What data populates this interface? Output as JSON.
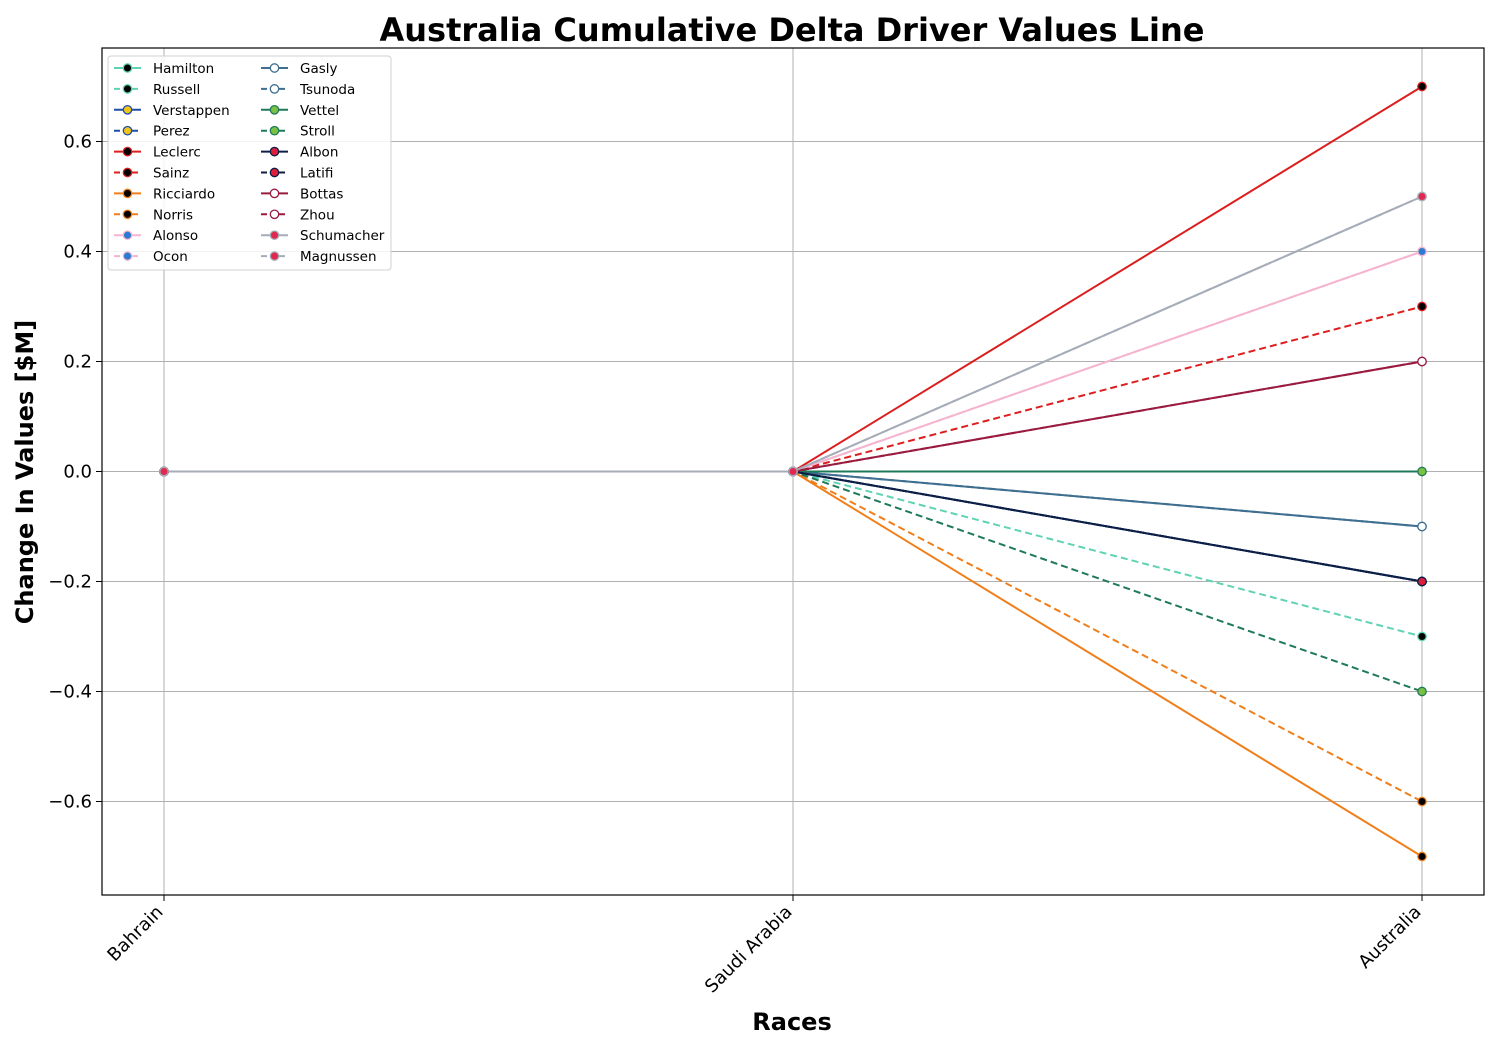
{
  "chart_data": {
    "type": "line",
    "title": "Australia Cumulative Delta Driver Values Line",
    "xlabel": "Races",
    "ylabel": "Change In Values [$M]",
    "categories": [
      "Bahrain",
      "Saudi Arabia",
      "Australia"
    ],
    "ylim": [
      -0.77,
      0.77
    ],
    "yticks": [
      -0.6,
      -0.4,
      -0.2,
      0.0,
      0.2,
      0.4,
      0.6
    ],
    "ytick_labels": [
      "−0.6",
      "−0.4",
      "−0.2",
      "0.0",
      "0.2",
      "0.4",
      "0.6"
    ],
    "grid": true,
    "legend_position": "top-left",
    "legend_columns": 2,
    "series": [
      {
        "name": "Hamilton",
        "values": [
          0,
          0,
          -0.2
        ],
        "color": "#5fd3b3",
        "dash": "solid",
        "marker_fill": "#000000"
      },
      {
        "name": "Russell",
        "values": [
          0,
          0,
          -0.3
        ],
        "color": "#5fd3b3",
        "dash": "dashed",
        "marker_fill": "#000000"
      },
      {
        "name": "Verstappen",
        "values": [
          0,
          0,
          -0.2
        ],
        "color": "#1e4fa8",
        "dash": "solid",
        "marker_fill": "#f2c318"
      },
      {
        "name": "Perez",
        "values": [
          0,
          0,
          -0.2
        ],
        "color": "#1e4fa8",
        "dash": "dashed",
        "marker_fill": "#f2c318"
      },
      {
        "name": "Leclerc",
        "values": [
          0,
          0,
          0.7
        ],
        "color": "#dc1e1e",
        "dash": "solid",
        "marker_fill": "#000000"
      },
      {
        "name": "Sainz",
        "values": [
          0,
          0,
          0.3
        ],
        "color": "#dc1e1e",
        "dash": "dashed",
        "marker_fill": "#000000"
      },
      {
        "name": "Ricciardo",
        "values": [
          0,
          0,
          -0.7
        ],
        "color": "#f07f1b",
        "dash": "solid",
        "marker_fill": "#000000"
      },
      {
        "name": "Norris",
        "values": [
          0,
          0,
          -0.6
        ],
        "color": "#f07f1b",
        "dash": "dashed",
        "marker_fill": "#000000"
      },
      {
        "name": "Alonso",
        "values": [
          0,
          0,
          0.4
        ],
        "color": "#f5b4cf",
        "dash": "solid",
        "marker_fill": "#2b7bd1"
      },
      {
        "name": "Ocon",
        "values": [
          0,
          0,
          0.4
        ],
        "color": "#f5b4cf",
        "dash": "dashed",
        "marker_fill": "#2b7bd1"
      },
      {
        "name": "Gasly",
        "values": [
          0,
          0,
          -0.1
        ],
        "color": "#3f6f90",
        "dash": "solid",
        "marker_fill": "#ffffff"
      },
      {
        "name": "Tsunoda",
        "values": [
          0,
          0,
          -0.1
        ],
        "color": "#3f6f90",
        "dash": "dashed",
        "marker_fill": "#ffffff"
      },
      {
        "name": "Vettel",
        "values": [
          0,
          0,
          0.0
        ],
        "color": "#1f7a58",
        "dash": "solid",
        "marker_fill": "#7ac143"
      },
      {
        "name": "Stroll",
        "values": [
          0,
          0,
          -0.4
        ],
        "color": "#1f7a58",
        "dash": "dashed",
        "marker_fill": "#7ac143"
      },
      {
        "name": "Albon",
        "values": [
          0,
          0,
          -0.2
        ],
        "color": "#0f1e45",
        "dash": "solid",
        "marker_fill": "#dc1e3c"
      },
      {
        "name": "Latifi",
        "values": [
          0,
          0,
          -0.2
        ],
        "color": "#0f1e45",
        "dash": "dashed",
        "marker_fill": "#dc1e3c"
      },
      {
        "name": "Bottas",
        "values": [
          0,
          0,
          0.2
        ],
        "color": "#9b1b3f",
        "dash": "solid",
        "marker_fill": "#ffffff"
      },
      {
        "name": "Zhou",
        "values": [
          0,
          0,
          0.2
        ],
        "color": "#9b1b3f",
        "dash": "dashed",
        "marker_fill": "#ffffff"
      },
      {
        "name": "Schumacher",
        "values": [
          0,
          0,
          0.5
        ],
        "color": "#a6adb8",
        "dash": "solid",
        "marker_fill": "#e02850"
      },
      {
        "name": "Magnussen",
        "values": [
          0,
          0,
          0.5
        ],
        "color": "#a6adb8",
        "dash": "dashed",
        "marker_fill": "#e02850"
      }
    ]
  }
}
